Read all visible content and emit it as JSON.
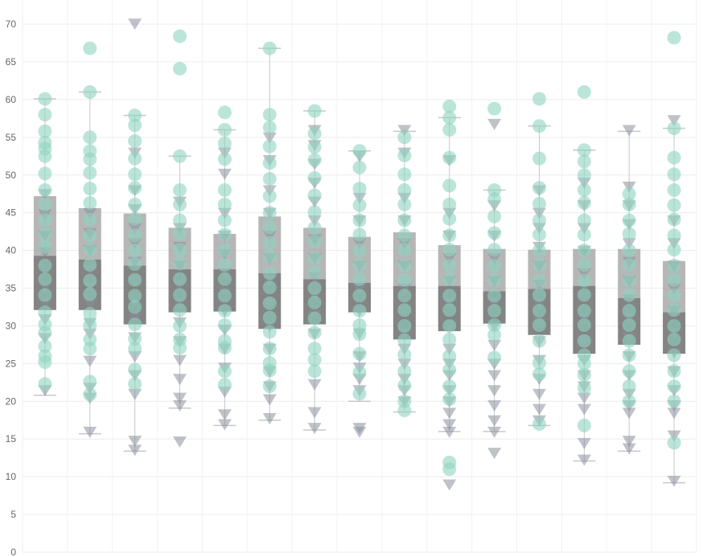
{
  "chart_data": {
    "type": "box-plot-with-jittered-points",
    "title": "",
    "xlabel": "",
    "ylabel": "",
    "ylim": [
      0,
      72
    ],
    "y_ticks": [
      0,
      5,
      10,
      15,
      20,
      25,
      30,
      35,
      40,
      45,
      50,
      55,
      60,
      65,
      70
    ],
    "grid": true,
    "legend": "none",
    "colors": {
      "circle_points": "#8fd3bf",
      "triangle_points": "#8a8f9c",
      "box_upper": "#a9a9a9",
      "box_lower": "#6f6f6f",
      "whisker": "#c8c8c8"
    },
    "groups": [
      {
        "whisker_low": 20.8,
        "q1": 32.1,
        "median": 39.3,
        "q3": 47.2,
        "whisker_high": 60.1,
        "circles": [
          60.1,
          58.0,
          55.8,
          54.3,
          53.5,
          52.5,
          50.2,
          48.0,
          46.1,
          44.0,
          42.1,
          40.5,
          38.0,
          36.2,
          34.1,
          31.8,
          30.2,
          29.1,
          27.3,
          26.0,
          25.2,
          22.3
        ],
        "triangles": [
          47.5,
          44.8,
          42.0,
          39.8,
          37.6,
          35.2,
          33.0,
          30.9,
          28.4,
          21.5
        ]
      },
      {
        "whisker_low": 15.7,
        "q1": 32.1,
        "median": 38.8,
        "q3": 45.6,
        "whisker_high": 61.0,
        "circles": [
          66.8,
          61.0,
          55.0,
          53.2,
          52.1,
          50.3,
          48.2,
          46.3,
          44.1,
          42.0,
          40.1,
          38.1,
          36.0,
          34.2,
          31.6,
          30.1,
          28.2,
          27.0,
          22.6,
          20.9
        ],
        "triangles": [
          45.0,
          42.3,
          40.1,
          37.5,
          35.2,
          33.0,
          30.4,
          29.0,
          25.4,
          21.8,
          20.5,
          16.0
        ]
      },
      {
        "whisker_low": 13.4,
        "q1": 30.2,
        "median": 38.0,
        "q3": 44.9,
        "whisker_high": 57.9,
        "circles": [
          57.9,
          56.6,
          54.5,
          52.2,
          50.1,
          48.3,
          46.1,
          44.2,
          42.0,
          40.0,
          38.2,
          36.1,
          34.0,
          32.5,
          30.2,
          28.3,
          27.0,
          24.2,
          22.3
        ],
        "triangles": [
          70.1,
          53.0,
          48.0,
          45.5,
          43.0,
          41.0,
          38.5,
          36.0,
          33.5,
          31.0,
          28.5,
          26.0,
          23.5,
          21.0,
          14.8,
          13.6
        ]
      },
      {
        "whisker_low": 19.1,
        "q1": 31.8,
        "median": 37.5,
        "q3": 43.0,
        "whisker_high": 52.5,
        "circles": [
          68.4,
          64.1,
          52.5,
          48.0,
          46.1,
          44.0,
          42.2,
          40.1,
          38.3,
          36.2,
          34.1,
          32.1,
          30.0,
          28.2,
          27.1
        ],
        "triangles": [
          46.5,
          43.0,
          40.5,
          38.0,
          35.5,
          33.0,
          30.5,
          28.0,
          25.5,
          23.0,
          20.5,
          19.5,
          14.7
        ]
      },
      {
        "whisker_low": 16.8,
        "q1": 31.9,
        "median": 37.5,
        "q3": 42.2,
        "whisker_high": 56.0,
        "circles": [
          58.3,
          56.0,
          54.2,
          52.1,
          48.0,
          46.1,
          44.0,
          42.1,
          40.0,
          38.1,
          36.2,
          34.0,
          32.0,
          30.1,
          28.0,
          27.1,
          24.0,
          22.2
        ],
        "triangles": [
          53.0,
          50.2,
          45.0,
          42.0,
          39.5,
          37.0,
          34.5,
          32.0,
          29.5,
          27.0,
          24.5,
          21.3,
          18.3,
          17.0
        ]
      },
      {
        "whisker_low": 17.5,
        "q1": 29.6,
        "median": 37.0,
        "q3": 44.5,
        "whisker_high": 66.8,
        "circles": [
          66.8,
          58.0,
          56.3,
          53.8,
          51.6,
          49.5,
          47.2,
          45.0,
          43.1,
          41.0,
          39.2,
          37.0,
          35.1,
          33.0,
          31.1,
          29.2,
          27.0,
          25.1,
          24.1,
          22.0
        ],
        "triangles": [
          55.0,
          52.0,
          48.0,
          45.0,
          42.0,
          39.0,
          36.0,
          33.0,
          30.0,
          27.0,
          24.0,
          22.0,
          20.3,
          17.8
        ]
      },
      {
        "whisker_low": 16.2,
        "q1": 30.2,
        "median": 36.2,
        "q3": 43.0,
        "whisker_high": 58.5,
        "circles": [
          58.5,
          55.5,
          53.7,
          52.0,
          49.6,
          47.3,
          45.1,
          43.0,
          41.2,
          39.0,
          37.1,
          35.0,
          33.1,
          31.0,
          29.1,
          27.0,
          25.5,
          24.0
        ],
        "triangles": [
          56.0,
          54.0,
          51.5,
          49.0,
          46.5,
          44.0,
          41.5,
          39.0,
          36.5,
          34.0,
          31.5,
          29.0,
          22.3,
          18.6,
          16.5
        ]
      },
      {
        "whisker_low": 20.0,
        "q1": 31.8,
        "median": 35.7,
        "q3": 41.8,
        "whisker_high": 53.2,
        "circles": [
          53.2,
          51.0,
          48.2,
          46.0,
          44.0,
          42.1,
          40.0,
          38.1,
          36.2,
          34.0,
          32.0,
          30.1,
          28.9,
          26.3,
          23.8,
          21.0
        ],
        "triangles": [
          52.5,
          47.0,
          44.0,
          41.0,
          38.0,
          35.0,
          32.0,
          29.0,
          26.0,
          24.5,
          23.0,
          21.5,
          16.5,
          16.0
        ]
      },
      {
        "whisker_low": 18.6,
        "q1": 28.2,
        "median": 35.3,
        "q3": 42.4,
        "whisker_high": 55.8,
        "circles": [
          55.0,
          52.6,
          50.1,
          48.0,
          46.1,
          44.0,
          42.0,
          40.1,
          38.0,
          36.1,
          34.0,
          32.1,
          30.0,
          28.1,
          26.2,
          24.0,
          22.1,
          20.0,
          18.8
        ],
        "triangles": [
          56.0,
          53.0,
          47.0,
          44.0,
          41.0,
          38.0,
          35.0,
          32.0,
          29.0,
          27.0,
          25.0,
          23.0,
          21.5,
          20.0
        ]
      },
      {
        "whisker_low": 16.0,
        "q1": 29.3,
        "median": 35.3,
        "q3": 40.7,
        "whisker_high": 57.6,
        "circles": [
          59.1,
          57.6,
          56.0,
          52.3,
          48.6,
          46.1,
          44.2,
          42.0,
          40.1,
          38.0,
          36.2,
          34.0,
          32.1,
          30.0,
          28.2,
          26.0,
          24.2,
          22.0,
          20.3,
          11.9,
          11.0
        ],
        "triangles": [
          52.0,
          45.0,
          42.0,
          39.0,
          36.0,
          33.0,
          30.0,
          27.0,
          25.0,
          23.5,
          21.5,
          20.0,
          18.5,
          17.0,
          16.0,
          9.0
        ]
      },
      {
        "whisker_low": 16.0,
        "q1": 30.3,
        "median": 34.6,
        "q3": 40.2,
        "whisker_high": 48.0,
        "circles": [
          58.8,
          48.0,
          46.8,
          44.5,
          42.3,
          40.1,
          38.0,
          36.1,
          34.0,
          32.0,
          30.1,
          28.8,
          25.8
        ],
        "triangles": [
          56.8,
          46.0,
          42.0,
          39.0,
          36.0,
          33.0,
          30.0,
          27.5,
          25.0,
          23.5,
          21.5,
          19.5,
          17.5,
          16.0,
          13.2
        ]
      },
      {
        "whisker_low": 16.8,
        "q1": 28.8,
        "median": 34.9,
        "q3": 40.1,
        "whisker_high": 56.5,
        "circles": [
          60.1,
          56.5,
          52.2,
          48.3,
          46.2,
          44.0,
          42.1,
          40.0,
          38.1,
          36.0,
          34.1,
          32.0,
          30.1,
          28.0,
          25.1,
          23.6,
          17.0
        ],
        "triangles": [
          48.0,
          45.0,
          43.0,
          40.5,
          38.0,
          35.5,
          33.0,
          30.5,
          28.0,
          25.5,
          23.0,
          21.0,
          19.0,
          17.5
        ]
      },
      {
        "whisker_low": 12.1,
        "q1": 26.3,
        "median": 35.3,
        "q3": 40.2,
        "whisker_high": 53.3,
        "circles": [
          61.0,
          53.3,
          51.8,
          50.0,
          48.0,
          46.3,
          44.0,
          42.1,
          40.0,
          38.1,
          36.0,
          34.1,
          32.0,
          30.1,
          28.0,
          26.1,
          25.0,
          23.5,
          21.8,
          16.8
        ],
        "triangles": [
          49.0,
          46.0,
          43.0,
          40.0,
          37.0,
          34.0,
          31.0,
          28.0,
          25.5,
          23.5,
          22.0,
          20.5,
          19.0,
          14.5,
          12.3
        ]
      },
      {
        "whisker_low": 13.4,
        "q1": 27.5,
        "median": 33.7,
        "q3": 40.2,
        "whisker_high": 55.8,
        "circles": [
          47.5,
          46.1,
          44.0,
          42.2,
          40.0,
          38.1,
          36.0,
          34.1,
          32.0,
          30.1,
          28.0,
          26.1,
          24.0,
          22.0,
          20.0
        ],
        "triangles": [
          56.0,
          48.5,
          46.0,
          43.5,
          41.0,
          38.5,
          36.0,
          33.5,
          31.0,
          28.5,
          26.0,
          23.5,
          21.0,
          19.5,
          18.5,
          14.8,
          13.8
        ]
      },
      {
        "whisker_low": 9.2,
        "q1": 26.3,
        "median": 31.8,
        "q3": 38.6,
        "whisker_high": 56.2,
        "circles": [
          68.2,
          56.2,
          52.3,
          50.1,
          48.0,
          46.0,
          44.1,
          42.0,
          40.1,
          38.0,
          36.1,
          34.0,
          32.1,
          30.0,
          28.2,
          26.1,
          24.0,
          22.0,
          20.0,
          14.5
        ],
        "triangles": [
          57.3,
          44.0,
          41.0,
          38.0,
          35.0,
          32.0,
          29.0,
          26.5,
          24.0,
          21.5,
          19.5,
          18.5,
          15.5,
          9.5
        ]
      }
    ]
  }
}
